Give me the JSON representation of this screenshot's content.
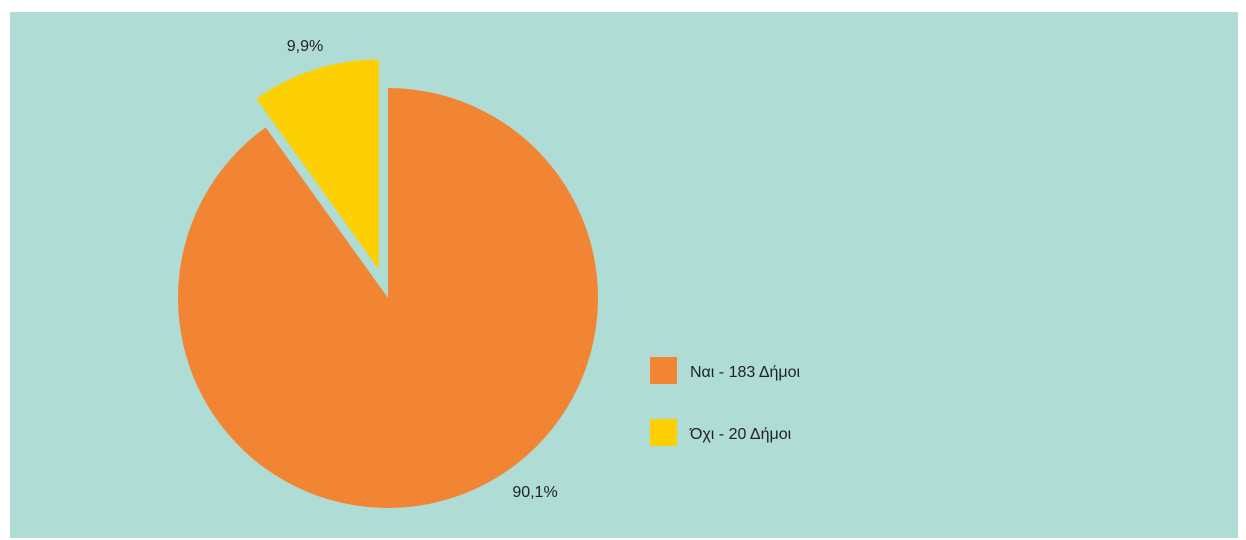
{
  "colors": {
    "background": "#afdcd5",
    "page": "#ffffff"
  },
  "chart_data": {
    "type": "pie",
    "title": "",
    "categories": [
      "Ναι - 183 Δήμοι",
      "Όχι - 20 Δήμοι"
    ],
    "values": [
      90.1,
      9.9
    ],
    "value_labels": [
      "90,1%",
      "9,9%"
    ],
    "colors": [
      "#f28534",
      "#fdd004"
    ],
    "exploded": [
      false,
      true
    ],
    "start_angle": "12 o'clock",
    "direction": "clockwise",
    "legend": {
      "placement": "right",
      "entries": [
        "Ναι - 183 Δήμοι",
        "Όχι - 20 Δήμοι"
      ]
    }
  }
}
